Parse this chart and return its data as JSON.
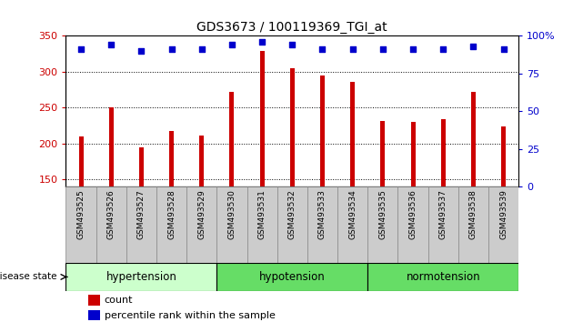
{
  "title": "GDS3673 / 100119369_TGI_at",
  "categories": [
    "GSM493525",
    "GSM493526",
    "GSM493527",
    "GSM493528",
    "GSM493529",
    "GSM493530",
    "GSM493531",
    "GSM493532",
    "GSM493533",
    "GSM493534",
    "GSM493535",
    "GSM493536",
    "GSM493537",
    "GSM493538",
    "GSM493539"
  ],
  "bar_values": [
    210,
    250,
    195,
    218,
    211,
    272,
    328,
    305,
    295,
    285,
    231,
    230,
    234,
    272,
    224
  ],
  "percentile_values": [
    91,
    94,
    90,
    91,
    91,
    94,
    96,
    94,
    91,
    91,
    91,
    91,
    91,
    93,
    91
  ],
  "bar_color": "#cc0000",
  "dot_color": "#0000cc",
  "ylim_left": [
    140,
    350
  ],
  "ylim_right": [
    0,
    100
  ],
  "yticks_left": [
    150,
    200,
    250,
    300,
    350
  ],
  "yticks_right": [
    0,
    25,
    50,
    75,
    100
  ],
  "group_data": [
    {
      "label": "hypertension",
      "start": 0,
      "end": 5,
      "color": "#ccffcc"
    },
    {
      "label": "hypotension",
      "start": 5,
      "end": 10,
      "color": "#66dd66"
    },
    {
      "label": "normotension",
      "start": 10,
      "end": 15,
      "color": "#66dd66"
    }
  ],
  "xlabel": "disease state",
  "legend_count_label": "count",
  "legend_percentile_label": "percentile rank within the sample",
  "bar_color_left": "#cc0000",
  "tick_label_color_left": "#cc0000",
  "tick_label_color_right": "#0000cc",
  "bar_width": 0.15,
  "dot_size": 18,
  "label_cell_color": "#cccccc",
  "label_cell_edge": "#888888"
}
